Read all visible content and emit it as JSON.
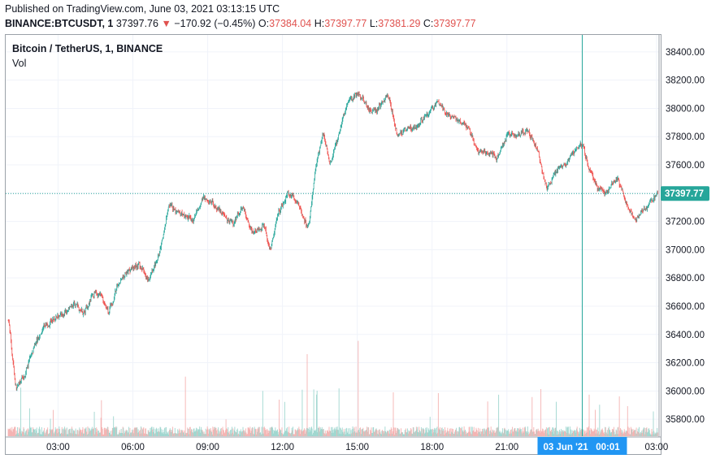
{
  "header": {
    "published": "Published on TradingView.com, June 03, 2021 03:13:15 UTC",
    "symbol_line_prefix": "BINANCE:BTCUSDT, 1",
    "last_price": "37397.76",
    "change_arrow": "▼",
    "change": "−170.92 (−0.45%)",
    "open_label": "O:",
    "open": "37384.04",
    "high_label": "H:",
    "high": "37397.77",
    "low_label": "L:",
    "low": "37381.29",
    "close_label": "C:",
    "close": "37397.77"
  },
  "legend": {
    "title": "Bitcoin / TetherUS, 1, BINANCE",
    "volume": "Vol"
  },
  "price_label": "37397.77",
  "crosshair_label": "03 Jun '21   00:01",
  "colors": {
    "up": "#26a69a",
    "down": "#ef5350",
    "up_vol": "#9fd6cf",
    "down_vol": "#f4b3b2",
    "price_tag": "#26a69a",
    "crosshair_tag": "#2196f3"
  },
  "chart_data": {
    "type": "candlestick",
    "y_axis_ticks": [
      "38400.00",
      "38200.00",
      "38000.00",
      "37800.00",
      "37600.00",
      "37400.00",
      "37200.00",
      "37000.00",
      "36800.00",
      "36600.00",
      "36400.00",
      "36200.00",
      "36000.00",
      "35800.00"
    ],
    "x_axis_ticks": [
      "03:00",
      "06:00",
      "09:00",
      "12:00",
      "15:00",
      "18:00",
      "21:00",
      "03:00"
    ],
    "ylim": [
      35680,
      38520
    ],
    "x_hours_start": 0.9,
    "x_hours_end": 27.1,
    "crosshair_hour": 24.02,
    "current_price": 37397.77,
    "price_path": [
      [
        1.0,
        36500
      ],
      [
        1.3,
        36000
      ],
      [
        1.6,
        36100
      ],
      [
        2.0,
        36300
      ],
      [
        2.4,
        36450
      ],
      [
        2.8,
        36500
      ],
      [
        3.2,
        36550
      ],
      [
        3.6,
        36620
      ],
      [
        4.0,
        36550
      ],
      [
        4.4,
        36700
      ],
      [
        4.8,
        36650
      ],
      [
        5.0,
        36550
      ],
      [
        5.4,
        36750
      ],
      [
        5.8,
        36850
      ],
      [
        6.2,
        36900
      ],
      [
        6.6,
        36780
      ],
      [
        7.0,
        36950
      ],
      [
        7.4,
        37300
      ],
      [
        7.7,
        37280
      ],
      [
        8.0,
        37250
      ],
      [
        8.4,
        37200
      ],
      [
        8.8,
        37380
      ],
      [
        9.2,
        37320
      ],
      [
        9.6,
        37260
      ],
      [
        10.0,
        37180
      ],
      [
        10.4,
        37300
      ],
      [
        10.8,
        37120
      ],
      [
        11.2,
        37180
      ],
      [
        11.5,
        37000
      ],
      [
        11.8,
        37250
      ],
      [
        12.2,
        37400
      ],
      [
        12.6,
        37330
      ],
      [
        13.0,
        37150
      ],
      [
        13.3,
        37560
      ],
      [
        13.6,
        37850
      ],
      [
        13.9,
        37600
      ],
      [
        14.3,
        37850
      ],
      [
        14.6,
        38050
      ],
      [
        15.0,
        38100
      ],
      [
        15.4,
        38000
      ],
      [
        15.8,
        38000
      ],
      [
        16.2,
        38100
      ],
      [
        16.6,
        37800
      ],
      [
        17.0,
        37850
      ],
      [
        17.4,
        37870
      ],
      [
        17.8,
        37950
      ],
      [
        18.2,
        38050
      ],
      [
        18.6,
        37950
      ],
      [
        19.0,
        37900
      ],
      [
        19.4,
        37880
      ],
      [
        19.8,
        37700
      ],
      [
        20.2,
        37700
      ],
      [
        20.6,
        37650
      ],
      [
        21.0,
        37820
      ],
      [
        21.4,
        37800
      ],
      [
        21.8,
        37860
      ],
      [
        22.2,
        37700
      ],
      [
        22.6,
        37420
      ],
      [
        22.9,
        37550
      ],
      [
        23.3,
        37600
      ],
      [
        23.7,
        37700
      ],
      [
        24.0,
        37750
      ],
      [
        24.3,
        37550
      ],
      [
        24.6,
        37430
      ],
      [
        25.0,
        37400
      ],
      [
        25.4,
        37520
      ],
      [
        25.8,
        37300
      ],
      [
        26.2,
        37220
      ],
      [
        26.6,
        37300
      ],
      [
        27.0,
        37400
      ]
    ]
  }
}
